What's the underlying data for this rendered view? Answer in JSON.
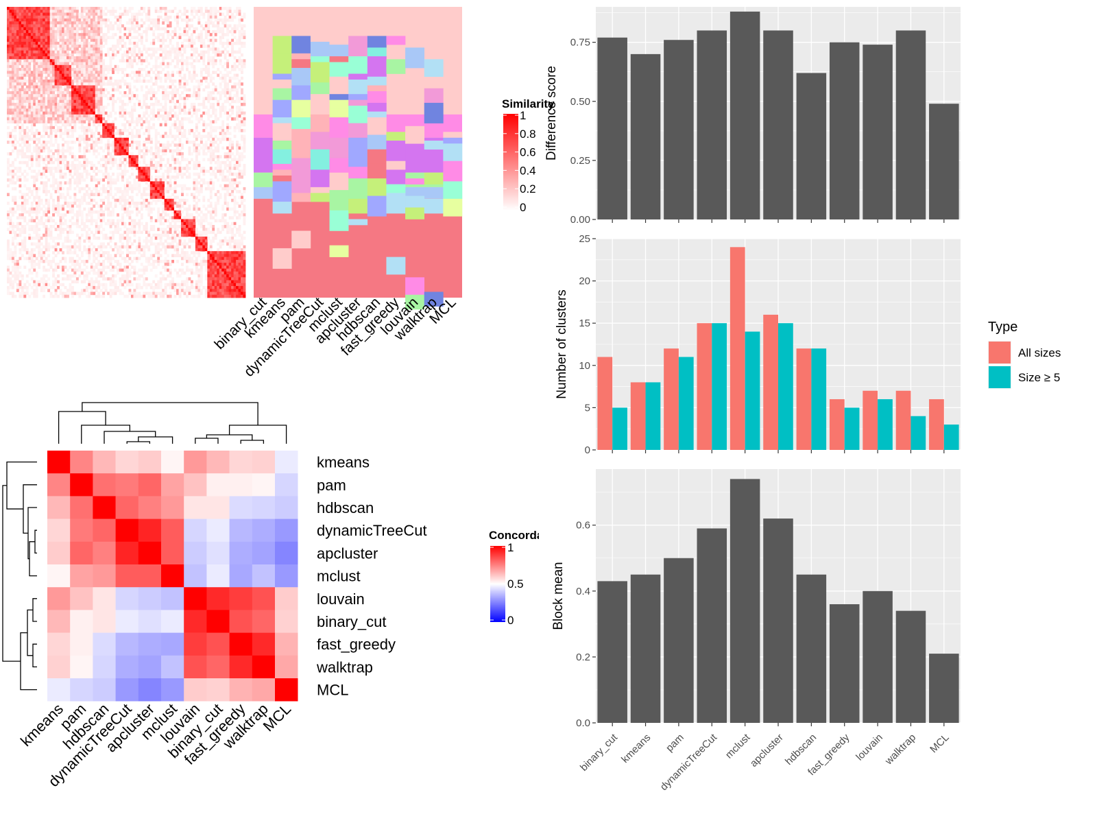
{
  "chart_data": [
    {
      "type": "heatmap",
      "name": "similarity-heatmap",
      "legend_title": "Similarity",
      "legend_ticks": [
        "1",
        "0.8",
        "0.6",
        "0.4",
        "0.2",
        "0"
      ],
      "colors": {
        "low": "#ffffff",
        "high": "#ff0000"
      }
    },
    {
      "type": "heatmap",
      "name": "cluster-membership-heatmap",
      "columns": [
        "binary_cut",
        "kmeans",
        "pam",
        "dynamicTreeCut",
        "mclust",
        "apcluster",
        "hdbscan",
        "fast_greedy",
        "louvain",
        "walktrap",
        "MCL"
      ]
    },
    {
      "type": "heatmap",
      "name": "concordance-heatmap",
      "legend_title": "Concordance",
      "legend_ticks": [
        "1",
        "0.5",
        "0"
      ],
      "colors": {
        "low": "#0000ff",
        "mid": "#ffffff",
        "high": "#ff0000"
      },
      "rows": [
        "kmeans",
        "pam",
        "hdbscan",
        "dynamicTreeCut",
        "apcluster",
        "mclust",
        "louvain",
        "binary_cut",
        "fast_greedy",
        "walktrap",
        "MCL"
      ],
      "columns": [
        "kmeans",
        "pam",
        "hdbscan",
        "dynamicTreeCut",
        "apcluster",
        "mclust",
        "louvain",
        "binary_cut",
        "fast_greedy",
        "walktrap",
        "MCL"
      ],
      "values": [
        [
          1.0,
          0.74,
          0.64,
          0.58,
          0.6,
          0.52,
          0.7,
          0.64,
          0.58,
          0.59,
          0.46
        ],
        [
          0.74,
          1.0,
          0.78,
          0.76,
          0.8,
          0.68,
          0.62,
          0.53,
          0.53,
          0.52,
          0.42
        ],
        [
          0.64,
          0.78,
          1.0,
          0.8,
          0.75,
          0.7,
          0.55,
          0.55,
          0.43,
          0.42,
          0.4
        ],
        [
          0.58,
          0.76,
          0.8,
          1.0,
          0.93,
          0.82,
          0.42,
          0.46,
          0.36,
          0.34,
          0.3
        ],
        [
          0.6,
          0.8,
          0.75,
          0.93,
          1.0,
          0.82,
          0.4,
          0.44,
          0.34,
          0.32,
          0.26
        ],
        [
          0.52,
          0.68,
          0.7,
          0.82,
          0.82,
          1.0,
          0.38,
          0.46,
          0.33,
          0.38,
          0.3
        ],
        [
          0.7,
          0.62,
          0.55,
          0.42,
          0.4,
          0.38,
          1.0,
          0.92,
          0.88,
          0.84,
          0.6
        ],
        [
          0.64,
          0.53,
          0.55,
          0.46,
          0.44,
          0.46,
          0.92,
          1.0,
          0.84,
          0.8,
          0.59
        ],
        [
          0.58,
          0.53,
          0.43,
          0.36,
          0.34,
          0.33,
          0.88,
          0.84,
          1.0,
          0.92,
          0.65
        ],
        [
          0.59,
          0.52,
          0.42,
          0.34,
          0.32,
          0.38,
          0.84,
          0.8,
          0.92,
          1.0,
          0.67
        ],
        [
          0.46,
          0.42,
          0.4,
          0.3,
          0.26,
          0.3,
          0.6,
          0.59,
          0.65,
          0.67,
          1.0
        ]
      ]
    },
    {
      "type": "bar",
      "name": "difference-score",
      "categories": [
        "binary_cut",
        "kmeans",
        "pam",
        "dynamicTreeCut",
        "mclust",
        "apcluster",
        "hdbscan",
        "fast_greedy",
        "louvain",
        "walktrap",
        "MCL"
      ],
      "values": [
        0.77,
        0.7,
        0.76,
        0.8,
        0.88,
        0.8,
        0.62,
        0.75,
        0.74,
        0.8,
        0.49
      ],
      "ylabel": "Difference score",
      "ylim": [
        0,
        0.9
      ],
      "yticks": [
        "0.00",
        "0.25",
        "0.50",
        "0.75"
      ],
      "bar_color": "#595959"
    },
    {
      "type": "bar",
      "name": "number-of-clusters",
      "categories": [
        "binary_cut",
        "kmeans",
        "pam",
        "dynamicTreeCut",
        "mclust",
        "apcluster",
        "hdbscan",
        "fast_greedy",
        "louvain",
        "walktrap",
        "MCL"
      ],
      "series": [
        {
          "name": "All sizes",
          "color": "#F8766D",
          "values": [
            11,
            8,
            12,
            15,
            24,
            16,
            12,
            6,
            7,
            7,
            6
          ]
        },
        {
          "name": "Size ≥ 5",
          "color": "#00BFC4",
          "values": [
            5,
            8,
            11,
            15,
            14,
            15,
            12,
            5,
            6,
            4,
            3
          ]
        }
      ],
      "ylabel": "Number of clusters",
      "ylim": [
        0,
        25
      ],
      "yticks": [
        "0",
        "5",
        "10",
        "15",
        "20",
        "25"
      ],
      "legend_title": "Type",
      "legend_position": "right"
    },
    {
      "type": "bar",
      "name": "block-mean",
      "categories": [
        "binary_cut",
        "kmeans",
        "pam",
        "dynamicTreeCut",
        "mclust",
        "apcluster",
        "hdbscan",
        "fast_greedy",
        "louvain",
        "walktrap",
        "MCL"
      ],
      "values": [
        0.43,
        0.45,
        0.5,
        0.59,
        0.74,
        0.62,
        0.45,
        0.36,
        0.4,
        0.34,
        0.21
      ],
      "ylabel": "Block mean",
      "ylim": [
        0,
        0.77
      ],
      "yticks": [
        "0.0",
        "0.2",
        "0.4",
        "0.6"
      ],
      "bar_color": "#595959"
    }
  ]
}
